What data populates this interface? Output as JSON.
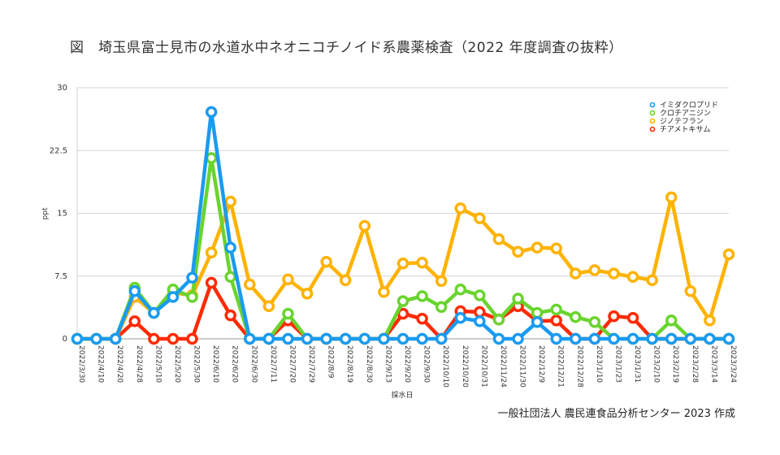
{
  "title": "図　埼玉県富士見市の水道水中ネオニコチノイド系農薬検査（2022 年度調査の抜粋）",
  "credit": "一般社団法人 農民連食品分析センター 2023 作成",
  "chart_data": {
    "type": "line",
    "title": "図　埼玉県富士見市の水道水中ネオニコチノイド系農薬検査（2022 年度調査の抜粋）",
    "xlabel": "採水日",
    "ylabel": "ppt",
    "ylim": [
      0,
      30
    ],
    "yticks": [
      "0",
      "7.5",
      "15",
      "22.5",
      "30"
    ],
    "grid": true,
    "legend_position": "top-right",
    "categories": [
      "2022/3/30",
      "2022/4/10",
      "2022/4/20",
      "2022/4/28",
      "2022/5/10",
      "2022/5/20",
      "2022/5/30",
      "2022/6/10",
      "2022/6/20",
      "2022/6/30",
      "2022/7/11",
      "2022/7/20",
      "2022/7/29",
      "2022/8/9",
      "2022/8/19",
      "2022/8/30",
      "2022/9/13",
      "2022/9/20",
      "2022/9/30",
      "2022/10/10",
      "2022/10/20",
      "2022/10/31",
      "2022/11/24",
      "2022/11/30",
      "2022/12/9",
      "2022/12/21",
      "2022/12/28",
      "2023/1/10",
      "2023/1/23",
      "2023/1/31",
      "2023/2/10",
      "2023/2/19",
      "2023/2/28",
      "2023/3/14",
      "2023/3/24"
    ],
    "series": [
      {
        "name": "チアメトキサム",
        "color": "#ff2a00",
        "values": [
          0,
          0,
          0,
          2.1,
          0,
          0,
          0,
          6.7,
          2.8,
          0,
          0,
          2.2,
          0,
          0,
          0,
          0,
          0,
          3.0,
          2.4,
          0,
          3.3,
          3.2,
          2.3,
          3.9,
          2.1,
          2.2,
          0,
          0,
          2.7,
          2.5,
          0,
          0,
          0,
          0,
          0
        ]
      },
      {
        "name": "ジノテフラン",
        "color": "#ffb200",
        "values": [
          0,
          0,
          0,
          5.0,
          3.1,
          5.5,
          5.2,
          10.3,
          16.4,
          6.5,
          3.9,
          7.1,
          5.4,
          9.2,
          7.0,
          13.5,
          5.6,
          9.0,
          9.1,
          6.9,
          15.6,
          14.4,
          11.9,
          10.4,
          10.9,
          10.8,
          7.8,
          8.2,
          7.8,
          7.4,
          7.0,
          16.9,
          5.7,
          2.2,
          10.1
        ]
      },
      {
        "name": "クロチアニジン",
        "color": "#6ad42e",
        "values": [
          0,
          0,
          0,
          6.1,
          3.1,
          5.9,
          5.0,
          21.6,
          7.4,
          0,
          0,
          3.0,
          0,
          0,
          0,
          0,
          0,
          4.5,
          5.1,
          3.8,
          5.9,
          5.2,
          2.3,
          4.8,
          3.1,
          3.5,
          2.6,
          2.0,
          0,
          0,
          0,
          2.2,
          0,
          0,
          0
        ]
      },
      {
        "name": "イミダクロプリド",
        "color": "#1a9bf0",
        "values": [
          0,
          0,
          0,
          5.7,
          3.1,
          5.0,
          7.3,
          27.1,
          10.9,
          0,
          0,
          0,
          0,
          0,
          0,
          0,
          0,
          0,
          0,
          0,
          2.5,
          2.1,
          0,
          0,
          2.0,
          0,
          0,
          0,
          0,
          0,
          0,
          0,
          0,
          0,
          0
        ]
      }
    ],
    "legend_order": [
      "イミダクロプリド",
      "クロチアニジン",
      "ジノテフラン",
      "チアメトキサム"
    ]
  }
}
